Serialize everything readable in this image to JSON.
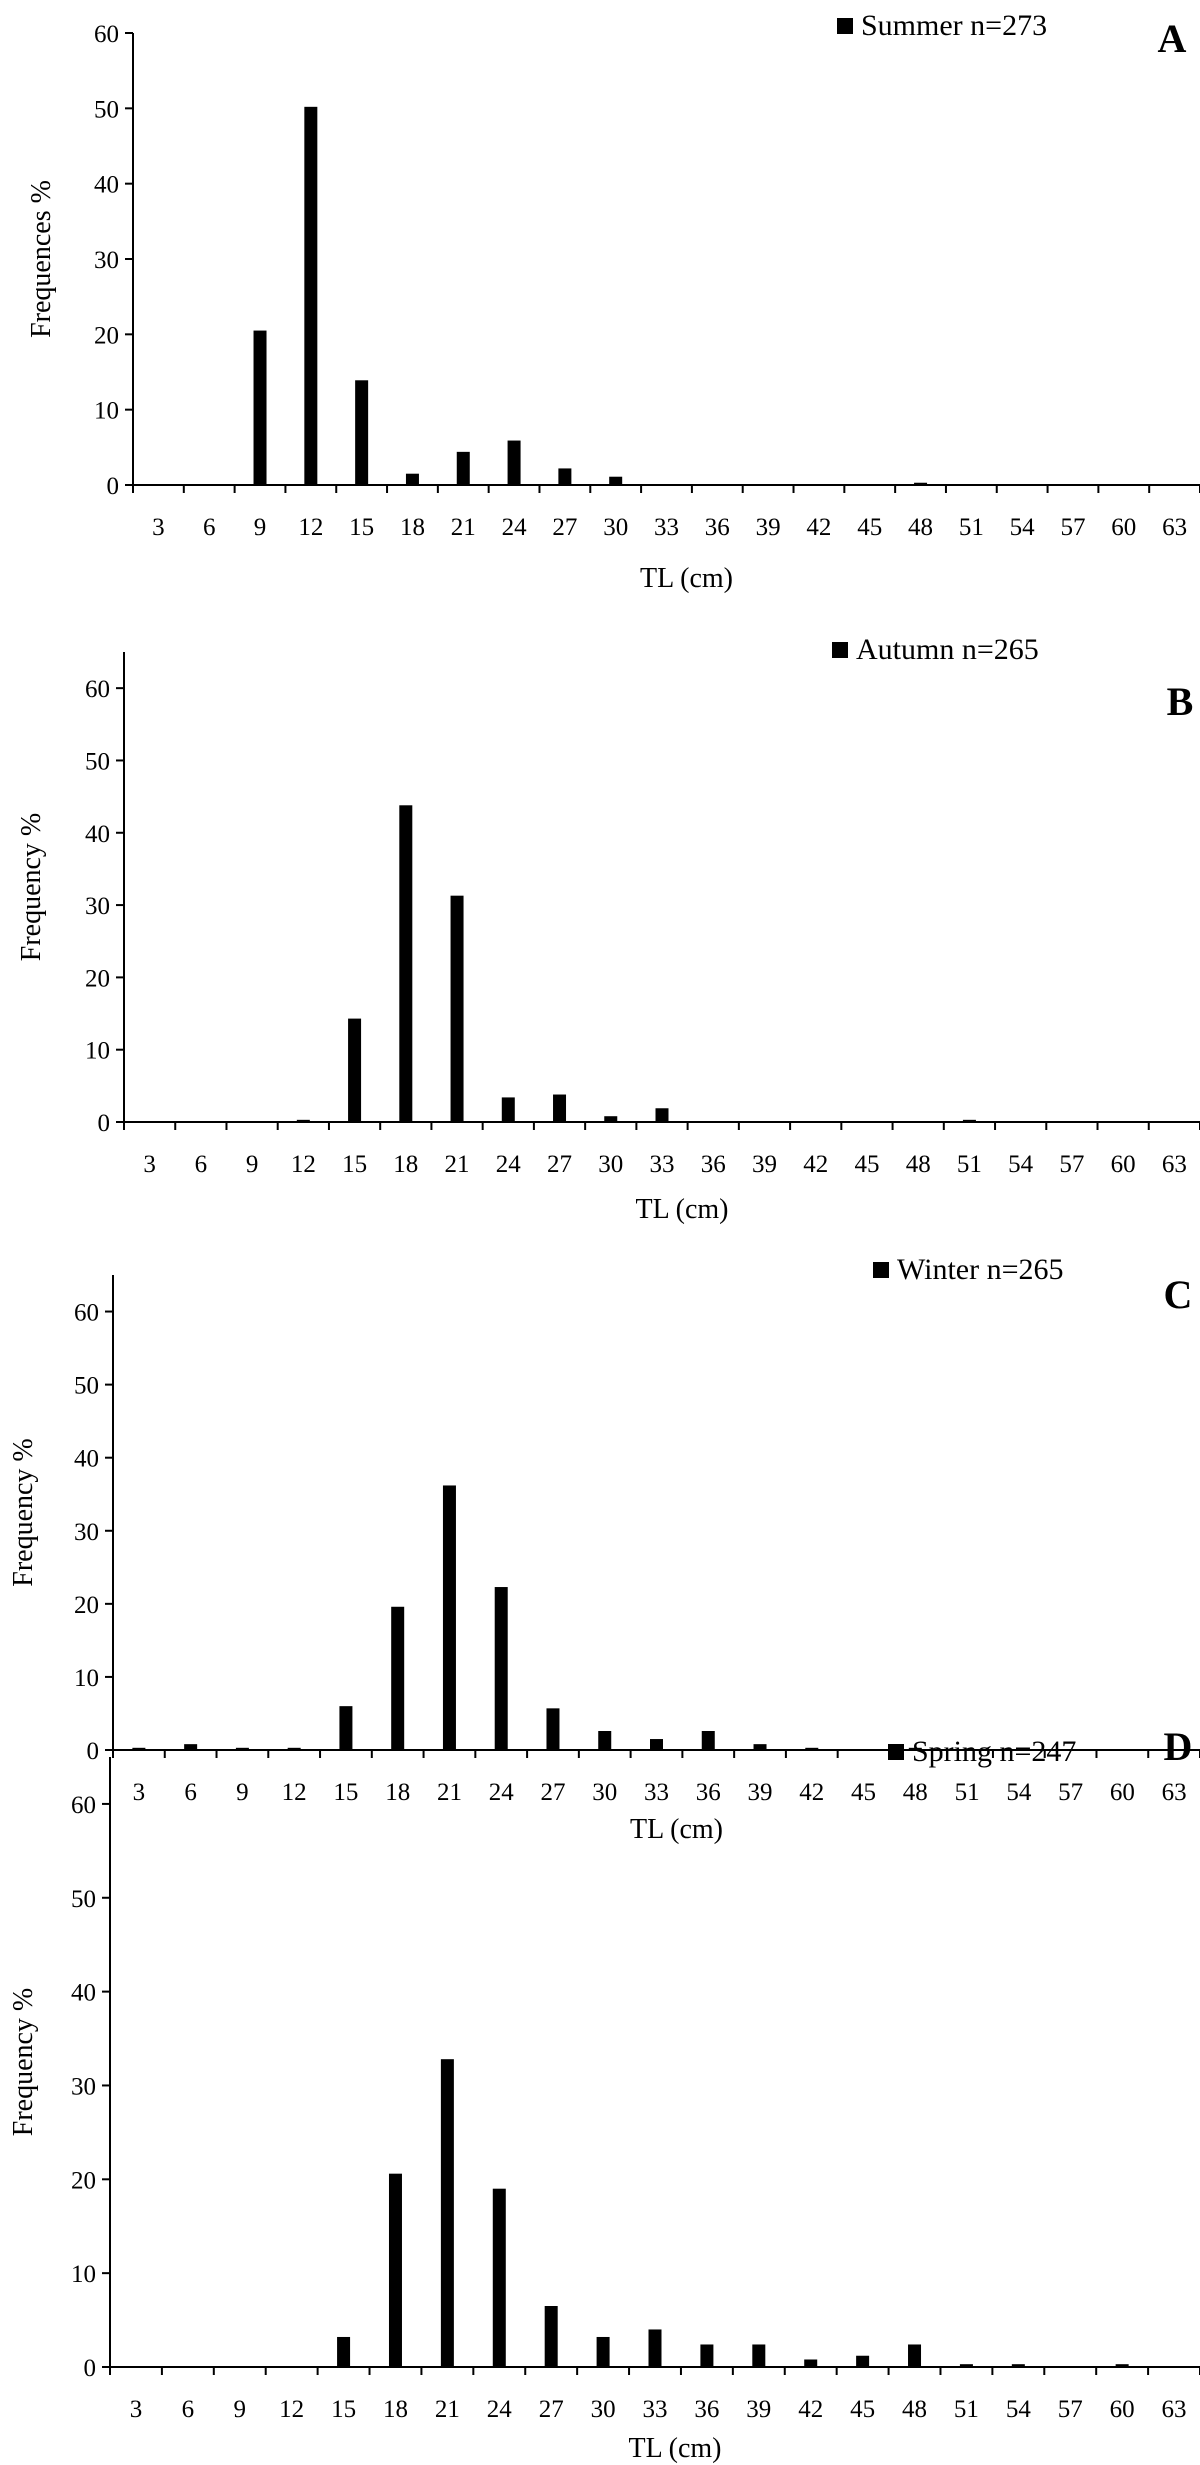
{
  "chart_data": [
    {
      "type": "bar",
      "panel_letter": "A",
      "xlabel": "TL (cm)",
      "ylabel": "Frequences %",
      "ylim": [
        0,
        60
      ],
      "yticks": [
        "0",
        "10",
        "20",
        "30",
        "40",
        "50",
        "60"
      ],
      "legend_position": "top-right",
      "categories": [
        "3",
        "6",
        "9",
        "12",
        "15",
        "18",
        "21",
        "24",
        "27",
        "30",
        "33",
        "36",
        "39",
        "42",
        "45",
        "48",
        "51",
        "54",
        "57",
        "60",
        "63"
      ],
      "series": [
        {
          "name": "Summer n=273",
          "values": [
            0,
            0,
            20.5,
            50.2,
            13.9,
            1.5,
            4.4,
            5.9,
            2.2,
            1.1,
            0,
            0,
            0,
            0,
            0,
            0.3,
            0,
            0,
            0,
            0,
            0
          ]
        }
      ]
    },
    {
      "type": "bar",
      "panel_letter": "B",
      "xlabel": "TL (cm)",
      "ylabel": "Frequency %",
      "ylim": [
        0,
        65
      ],
      "yticks": [
        "0",
        "10",
        "20",
        "30",
        "40",
        "50",
        "60"
      ],
      "legend_position": "top-right",
      "categories": [
        "3",
        "6",
        "9",
        "12",
        "15",
        "18",
        "21",
        "24",
        "27",
        "30",
        "33",
        "36",
        "39",
        "42",
        "45",
        "48",
        "51",
        "54",
        "57",
        "60",
        "63"
      ],
      "series": [
        {
          "name": "Autumn n=265",
          "values": [
            0,
            0,
            0,
            0.3,
            14.3,
            43.8,
            31.3,
            3.4,
            3.8,
            0.8,
            1.9,
            0,
            0,
            0,
            0,
            0,
            0.3,
            0,
            0,
            0,
            0
          ]
        }
      ]
    },
    {
      "type": "bar",
      "panel_letter": "C",
      "xlabel": "TL (cm)",
      "ylabel": "Frequency %",
      "ylim": [
        0,
        65
      ],
      "yticks": [
        "0",
        "10",
        "20",
        "30",
        "40",
        "50",
        "60"
      ],
      "legend_position": "top-right",
      "categories": [
        "3",
        "6",
        "9",
        "12",
        "15",
        "18",
        "21",
        "24",
        "27",
        "30",
        "33",
        "36",
        "39",
        "42",
        "45",
        "48",
        "51",
        "54",
        "57",
        "60",
        "63"
      ],
      "series": [
        {
          "name": "Winter n=265",
          "values": [
            0.3,
            0.8,
            0.3,
            0.3,
            6.0,
            19.6,
            36.2,
            22.3,
            5.7,
            2.6,
            1.5,
            2.6,
            0.8,
            0.3,
            0,
            0.3,
            0,
            0,
            0,
            0,
            0
          ]
        }
      ]
    },
    {
      "type": "bar",
      "panel_letter": "D",
      "xlabel": "TL (cm)",
      "ylabel": "Frequency %",
      "ylim": [
        0,
        65
      ],
      "yticks": [
        "0",
        "10",
        "20",
        "30",
        "40",
        "50",
        "60"
      ],
      "legend_position": "top-right",
      "categories": [
        "3",
        "6",
        "9",
        "12",
        "15",
        "18",
        "21",
        "24",
        "27",
        "30",
        "33",
        "36",
        "39",
        "42",
        "45",
        "48",
        "51",
        "54",
        "57",
        "60",
        "63"
      ],
      "series": [
        {
          "name": "Spring n=247",
          "values": [
            0,
            0,
            0,
            0,
            3.2,
            20.6,
            32.8,
            19.0,
            6.5,
            3.2,
            4.0,
            2.4,
            2.4,
            0.8,
            1.2,
            2.4,
            0.3,
            0.3,
            0,
            0.3,
            0
          ]
        }
      ]
    }
  ]
}
